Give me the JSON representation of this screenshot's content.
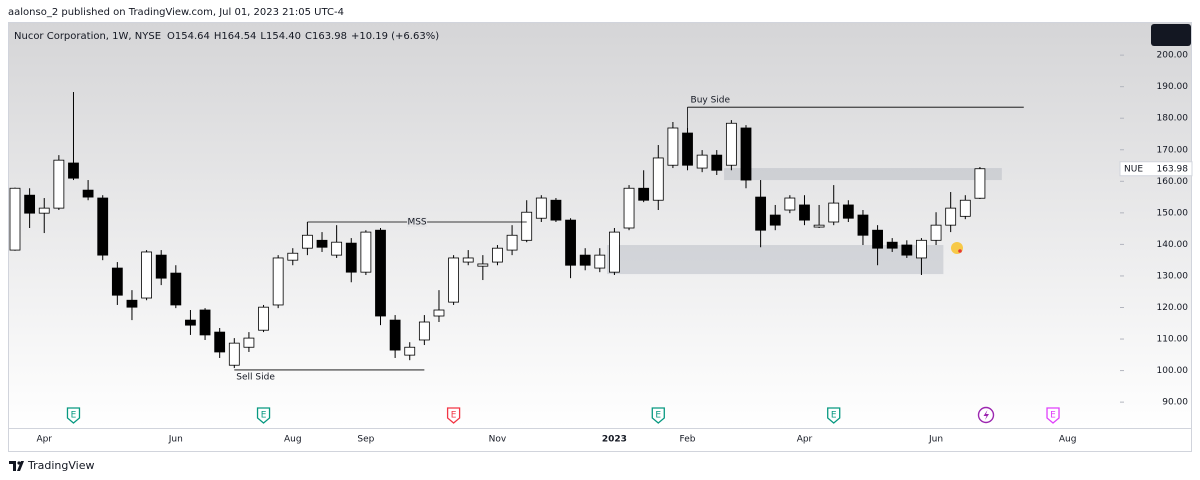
{
  "publisher": "aalonso_2 published on TradingView.com, Jul 01, 2023 21:05 UTC-4",
  "footer": "TradingView",
  "chart_data": {
    "type": "candlestick",
    "legend": {
      "symbol": "Nucor Corporation, 1W, NYSE",
      "open": "O154.64",
      "high": "H164.54",
      "low": "L154.40",
      "close": "C163.98",
      "change": "+10.19 (+6.63%)"
    },
    "categories": [
      null,
      null,
      "Apr",
      null,
      null,
      null,
      null,
      null,
      null,
      null,
      null,
      "Jun",
      null,
      null,
      null,
      null,
      null,
      null,
      null,
      "Aug",
      null,
      null,
      null,
      null,
      "Sep",
      null,
      null,
      null,
      null,
      null,
      null,
      null,
      null,
      "Nov",
      null,
      null,
      null,
      null,
      null,
      null,
      null,
      "2023",
      null,
      null,
      null,
      null,
      "Feb",
      null,
      null,
      null,
      null,
      null,
      null,
      null,
      "Apr",
      null,
      null,
      null,
      null,
      null,
      null,
      null,
      null,
      "Jun",
      null,
      null,
      null,
      null,
      null,
      null,
      null,
      null,
      "Aug",
      null,
      null,
      null
    ],
    "open": [
      138.2,
      155.6,
      149.9,
      151.5,
      165.8,
      157.2,
      154.7,
      132.5,
      122.3,
      123,
      136.6,
      130.9,
      116,
      119.2,
      112.2,
      101.7,
      107.4,
      112.8,
      120.8,
      135,
      138.8,
      141.3,
      136.6,
      140.4,
      131.2,
      144.5,
      116,
      104.9,
      109.7,
      117.3,
      121.7,
      134.4,
      133.1,
      134.4,
      138.2,
      141.3,
      148.3,
      154,
      147.7,
      136.6,
      132.5,
      131.2,
      145.2,
      157.8,
      154,
      165.1,
      175.3,
      164.2,
      168.3,
      165.1,
      176.9,
      155,
      149.3,
      150.9,
      152.5,
      145.5,
      147.1,
      152.5,
      149.3,
      144.5,
      140.7,
      139.8,
      135.7,
      141.3,
      146.1,
      148.9,
      154.64,
      null,
      null,
      null,
      null,
      null,
      null,
      null,
      null,
      null
    ],
    "high": [
      158,
      157.8,
      154.7,
      168.3,
      188.3,
      160.4,
      155.6,
      134.4,
      125.5,
      138.2,
      138.2,
      133.4,
      119.2,
      119.8,
      113.5,
      110.3,
      112.2,
      120.8,
      136.6,
      138.8,
      147.1,
      143.9,
      146.1,
      142,
      144.5,
      145.2,
      117.6,
      109,
      117.6,
      125.5,
      136.6,
      138.2,
      136.6,
      139.8,
      146.1,
      154,
      155.6,
      154.7,
      148.3,
      138.8,
      138.8,
      145.2,
      158.8,
      163.5,
      171.5,
      178.8,
      176.9,
      169.9,
      169.9,
      179.4,
      177.8,
      160.4,
      152.5,
      155.6,
      155.6,
      152.5,
      158.8,
      154,
      150.9,
      146.1,
      142,
      141.3,
      142,
      150.2,
      156.6,
      155.6,
      164.54,
      null,
      null,
      null,
      null,
      null,
      null,
      null,
      null,
      null
    ],
    "low": [
      138,
      145.2,
      143.6,
      150.9,
      160.4,
      154,
      135,
      120.8,
      116,
      122.3,
      127.1,
      119.8,
      111.3,
      109.7,
      104,
      100.8,
      105.9,
      112.2,
      119.8,
      133.4,
      136.6,
      137.6,
      135.7,
      128,
      130.3,
      114.4,
      104,
      103.3,
      108.1,
      115.4,
      120.8,
      133.4,
      128.7,
      133.4,
      136.6,
      140.7,
      147.1,
      147.1,
      129.3,
      131.8,
      131.2,
      130.3,
      144.5,
      153.4,
      150.9,
      164.2,
      163.5,
      162.9,
      162,
      163.5,
      157.8,
      139.1,
      144.5,
      149.9,
      146.1,
      145.2,
      146.1,
      147.1,
      139.8,
      133.4,
      137.6,
      135.7,
      130.3,
      139.8,
      143.9,
      148,
      154.4,
      null,
      null,
      null,
      null,
      null,
      null,
      null,
      null,
      null
    ],
    "close": [
      157.8,
      149.9,
      151.5,
      166.7,
      161,
      155,
      136.6,
      123.9,
      120.1,
      137.6,
      129.3,
      120.8,
      114.4,
      111.3,
      105.9,
      108.7,
      110.3,
      120.1,
      135.7,
      137.2,
      142.9,
      139.1,
      140.7,
      131.2,
      143.9,
      117.3,
      106.5,
      107.4,
      115.4,
      119.2,
      135.7,
      135.7,
      133.8,
      138.8,
      142.9,
      150.2,
      154.7,
      147.7,
      133.4,
      133.4,
      136.6,
      143.9,
      157.8,
      154,
      167.4,
      176.9,
      165.1,
      168.3,
      163.5,
      178.4,
      160.4,
      144.5,
      146.1,
      154.7,
      147.7,
      146.1,
      153.1,
      148.3,
      142.9,
      138.8,
      138.8,
      136.6,
      141.3,
      146.1,
      151.5,
      154,
      163.98,
      null,
      null,
      null,
      null,
      null,
      null,
      null,
      null,
      null
    ],
    "up_color": "#ffffff",
    "down_color": "#000000",
    "ylim": [
      81.8,
      210.5
    ],
    "yticks": [
      {
        "value": 90,
        "label": "90.00"
      },
      {
        "value": 100,
        "label": "100.00"
      },
      {
        "value": 110,
        "label": "110.00"
      },
      {
        "value": 120,
        "label": "120.00"
      },
      {
        "value": 130,
        "label": "130.00"
      },
      {
        "value": 140,
        "label": "140.00"
      },
      {
        "value": 150,
        "label": "150.00"
      },
      {
        "value": 160,
        "label": "160.00"
      },
      {
        "value": 170,
        "label": "170.00"
      },
      {
        "value": 180,
        "label": "180.00"
      },
      {
        "value": 190,
        "label": "190.00"
      },
      {
        "value": 200,
        "label": "200.00"
      }
    ],
    "last_price": {
      "symbol": "NUE",
      "value": 163.98
    },
    "annotations": [
      {
        "text": "Buy Side",
        "price": 183.5,
        "start": 46,
        "end": 69,
        "label_position": "above"
      },
      {
        "text": "MSS",
        "price": 147.1,
        "start": 20,
        "end": 35,
        "label_position": "center"
      },
      {
        "text": "Sell Side",
        "price": 100.2,
        "start": 15,
        "end": 28,
        "label_position": "below"
      }
    ],
    "zones": [
      {
        "start": 41,
        "end": 63,
        "low": 130.6,
        "high": 139.8
      },
      {
        "start": 49,
        "end": 67,
        "low": 160.4,
        "high": 164.2
      }
    ],
    "events": [
      {
        "at": 4,
        "label": "E",
        "color": "#089981"
      },
      {
        "at": 17,
        "label": "E",
        "color": "#089981"
      },
      {
        "at": 30,
        "label": "E",
        "color": "#f23645"
      },
      {
        "at": 44,
        "label": "E",
        "color": "#089981"
      },
      {
        "at": 56,
        "label": "E",
        "color": "#089981"
      },
      {
        "at": 71,
        "label": "E",
        "color": "#e040fb"
      }
    ]
  }
}
